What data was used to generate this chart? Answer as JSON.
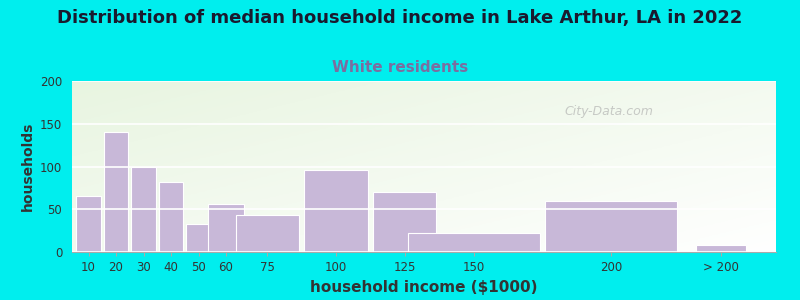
{
  "title": "Distribution of median household income in Lake Arthur, LA in 2022",
  "subtitle": "White residents",
  "xlabel": "household income ($1000)",
  "ylabel": "households",
  "background_outer": "#00EEEE",
  "bar_color": "#C8B8D8",
  "bar_edge_color": "#FFFFFF",
  "title_fontsize": 13,
  "subtitle_fontsize": 11,
  "subtitle_color": "#7B6EA0",
  "xlabel_fontsize": 11,
  "ylabel_fontsize": 10,
  "ylim": [
    0,
    200
  ],
  "yticks": [
    0,
    50,
    100,
    150,
    200
  ],
  "categories": [
    "10",
    "20",
    "30",
    "40",
    "50",
    "60",
    "75",
    "100",
    "125",
    "150",
    "200",
    "> 200"
  ],
  "tick_positions": [
    10,
    20,
    30,
    40,
    50,
    60,
    75,
    100,
    125,
    150,
    200,
    240
  ],
  "actual_widths": [
    9,
    9,
    9,
    9,
    9,
    13,
    23,
    23,
    23,
    48,
    48,
    18
  ],
  "values": [
    65,
    140,
    100,
    82,
    33,
    56,
    43,
    96,
    70,
    22,
    60,
    8
  ],
  "watermark": "City-Data.com",
  "xlim": [
    4,
    260
  ]
}
